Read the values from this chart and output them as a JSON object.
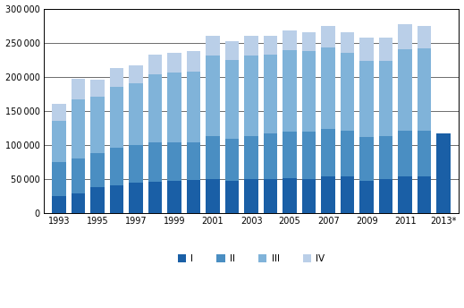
{
  "years": [
    1993,
    1994,
    1995,
    1996,
    1997,
    1998,
    1999,
    2000,
    2001,
    2002,
    2003,
    2004,
    2005,
    2006,
    2007,
    2008,
    2009,
    2010,
    2011,
    2012,
    2013
  ],
  "Q1": [
    25000,
    28000,
    38000,
    40000,
    45000,
    46000,
    47000,
    48000,
    50000,
    47000,
    50000,
    50000,
    51000,
    50000,
    53000,
    54000,
    47000,
    49000,
    53000,
    54000,
    117000
  ],
  "Q2": [
    50000,
    52000,
    50000,
    55000,
    55000,
    57000,
    56000,
    56000,
    63000,
    62000,
    63000,
    67000,
    68000,
    69000,
    70000,
    67000,
    64000,
    64000,
    67000,
    67000,
    0
  ],
  "Q3": [
    60000,
    87000,
    82000,
    90000,
    90000,
    100000,
    103000,
    103000,
    118000,
    115000,
    118000,
    115000,
    120000,
    118000,
    120000,
    114000,
    112000,
    110000,
    120000,
    120000,
    0
  ],
  "Q4": [
    25000,
    30000,
    25000,
    27000,
    27000,
    30000,
    29000,
    30000,
    29000,
    28000,
    29000,
    28000,
    29000,
    28000,
    31000,
    30000,
    35000,
    35000,
    37000,
    34000,
    0
  ],
  "colors": [
    "#1a5fa6",
    "#4a8ec2",
    "#80b3d9",
    "#bacfe8"
  ],
  "ylim_max": 300000,
  "ytick_step": 50000,
  "bar_width": 0.72,
  "legend_labels": [
    "I",
    "II",
    "III",
    "IV"
  ],
  "xtick_years": [
    1993,
    1995,
    1997,
    1999,
    2001,
    2003,
    2005,
    2007,
    2009,
    2011,
    2013
  ],
  "xlim": [
    1992.2,
    2013.8
  ]
}
